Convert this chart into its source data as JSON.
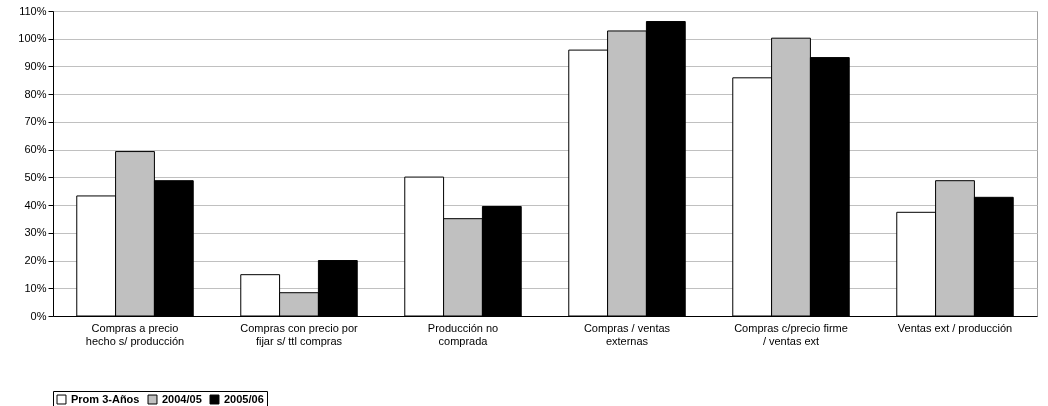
{
  "chart_data": {
    "type": "bar",
    "categories": [
      "Compras a precio hecho s/ producción",
      "Compras con precio por fijar s/ ttl compras",
      "Producción no comprada",
      "Compras / ventas externas",
      "Compras c/precio firme / ventas ext",
      "Ventas ext / producción"
    ],
    "series": [
      {
        "name": "Prom 3-Años",
        "color": "#ffffff",
        "values": [
          43.3,
          14.9,
          50.1,
          95.9,
          85.9,
          37.4
        ]
      },
      {
        "name": "2004/05",
        "color": "#c0c0c0",
        "values": [
          59.3,
          8.4,
          35.1,
          102.8,
          100.2,
          48.8
        ]
      },
      {
        "name": "2005/06",
        "color": "#000000",
        "values": [
          48.8,
          20.0,
          39.5,
          106.2,
          93.2,
          42.8
        ]
      }
    ],
    "ylim": [
      0,
      110
    ],
    "yticks": [
      {
        "value": 0,
        "label": "0%"
      },
      {
        "value": 10,
        "label": "10%"
      },
      {
        "value": 20,
        "label": "20%"
      },
      {
        "value": 30,
        "label": "30%"
      },
      {
        "value": 40,
        "label": "40%"
      },
      {
        "value": 50,
        "label": "50%"
      },
      {
        "value": 60,
        "label": "60%"
      },
      {
        "value": 70,
        "label": "70%"
      },
      {
        "value": 80,
        "label": "80%"
      },
      {
        "value": 90,
        "label": "90%"
      },
      {
        "value": 100,
        "label": "100%"
      },
      {
        "value": 110,
        "label": "110%"
      }
    ],
    "grid": "y",
    "legend": "bottom"
  }
}
